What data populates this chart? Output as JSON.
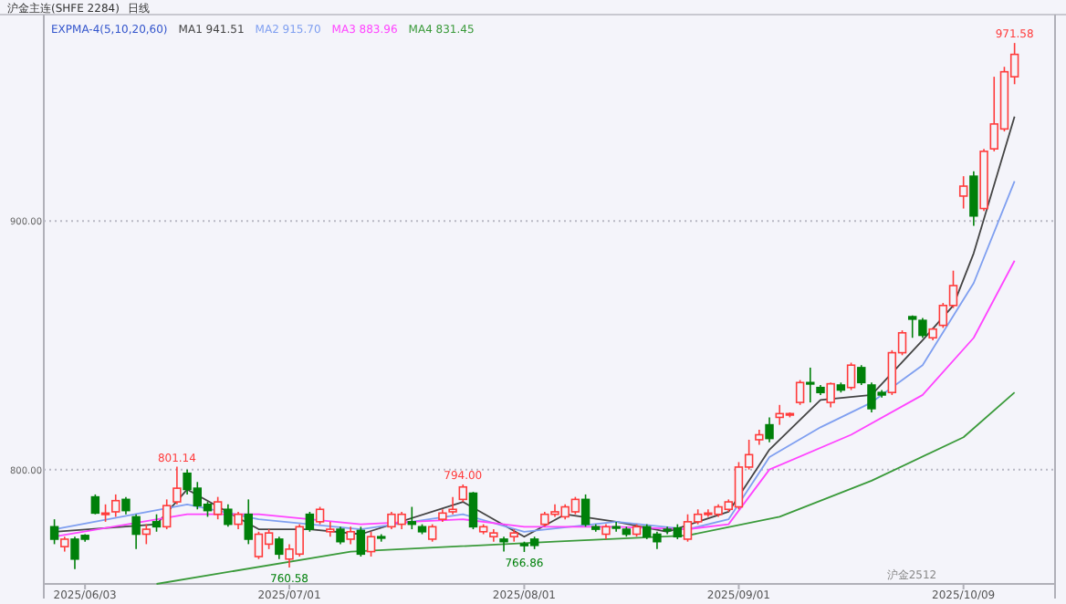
{
  "chart_data": {
    "type": "candlestick",
    "title": "沪金主连(SHFE 2284)",
    "subtitle": "日线",
    "legend_title": "EXPMA-4(5,10,20,60)",
    "categories": [
      null,
      null,
      null,
      "2025/06/03",
      null,
      null,
      null,
      null,
      null,
      null,
      null,
      null,
      null,
      null,
      null,
      null,
      null,
      null,
      null,
      null,
      null,
      null,
      null,
      "2025/07/01",
      null,
      null,
      null,
      null,
      null,
      null,
      null,
      null,
      null,
      null,
      null,
      null,
      null,
      null,
      null,
      null,
      null,
      null,
      null,
      null,
      null,
      null,
      "2025/08/01",
      null,
      null,
      null,
      null,
      null,
      null,
      null,
      null,
      null,
      null,
      null,
      null,
      null,
      null,
      null,
      null,
      null,
      null,
      null,
      null,
      "2025/09/01",
      null,
      null,
      null,
      null,
      null,
      null,
      null,
      null,
      null,
      null,
      null,
      null,
      null,
      null,
      null,
      null,
      null,
      null,
      null,
      null,
      null,
      "2025/10/09",
      null,
      null,
      null,
      null,
      null
    ],
    "ohlc": [
      [
        777,
        780,
        770,
        772
      ],
      [
        769,
        773,
        767,
        772
      ],
      [
        772,
        773,
        760,
        764
      ],
      [
        773.5,
        774,
        771,
        772
      ],
      [
        789,
        790,
        782,
        782.5
      ],
      [
        782,
        786,
        779,
        782.5
      ],
      [
        783,
        790,
        781,
        787.5
      ],
      [
        788,
        789,
        782,
        783.5
      ],
      [
        781,
        782,
        768,
        774
      ],
      [
        774,
        778,
        770,
        776
      ],
      [
        779,
        782,
        775,
        777
      ],
      [
        777,
        788,
        776,
        785.5
      ],
      [
        787,
        801.14,
        786,
        792.5
      ],
      [
        798.5,
        800,
        790,
        792
      ],
      [
        792.5,
        795,
        784,
        785.5
      ],
      [
        786,
        787,
        781,
        783.5
      ],
      [
        782,
        789,
        780,
        787
      ],
      [
        784,
        786,
        777,
        778
      ],
      [
        778,
        783,
        776,
        782
      ],
      [
        782,
        788,
        770,
        772
      ],
      [
        765,
        775,
        764,
        774
      ],
      [
        770,
        776,
        768,
        774.5
      ],
      [
        772,
        773,
        764,
        766
      ],
      [
        764,
        770,
        760.58,
        768
      ],
      [
        766,
        778,
        765,
        777
      ],
      [
        782,
        783,
        775,
        776
      ],
      [
        779,
        785,
        778,
        784
      ],
      [
        775,
        779,
        773,
        776
      ],
      [
        776,
        777,
        770,
        771
      ],
      [
        772,
        777,
        770,
        775
      ],
      [
        775.5,
        777,
        765,
        766
      ],
      [
        767,
        775,
        765,
        773
      ],
      [
        773,
        774,
        771,
        772.5
      ],
      [
        777,
        783,
        776,
        782
      ],
      [
        778,
        783,
        776,
        782
      ],
      [
        779,
        785,
        776,
        778
      ],
      [
        777,
        778,
        774,
        775
      ],
      [
        772,
        778,
        771,
        777
      ],
      [
        780,
        784,
        779,
        782.5
      ],
      [
        783,
        789,
        782,
        784
      ],
      [
        788,
        794.0,
        787,
        793
      ],
      [
        790.5,
        791,
        776,
        777
      ],
      [
        775,
        778,
        774,
        777
      ],
      [
        773,
        776,
        771,
        774.5
      ],
      [
        772,
        773,
        767,
        771
      ],
      [
        773,
        776,
        771,
        774.5
      ],
      [
        770,
        771,
        766.86,
        769.5
      ],
      [
        772,
        773,
        768,
        769.5
      ],
      [
        778,
        783,
        777,
        782
      ],
      [
        782,
        786,
        781,
        783
      ],
      [
        781,
        786,
        780,
        785
      ],
      [
        783,
        789,
        782,
        788
      ],
      [
        788,
        790,
        777,
        778
      ],
      [
        777,
        778,
        775,
        776
      ],
      [
        774,
        778,
        772,
        777
      ],
      [
        777,
        779,
        775,
        776.5
      ],
      [
        776,
        777,
        773,
        774
      ],
      [
        774,
        778,
        773,
        777
      ],
      [
        777,
        778,
        772,
        773
      ],
      [
        774,
        775,
        768,
        771
      ],
      [
        776,
        777,
        774,
        775.5
      ],
      [
        776.5,
        778,
        772,
        773
      ],
      [
        772,
        782,
        771,
        779
      ],
      [
        779,
        784,
        778,
        782
      ],
      [
        782,
        784,
        781,
        782.5
      ],
      [
        782,
        786,
        781,
        785
      ],
      [
        784,
        788,
        783,
        787
      ],
      [
        785,
        803,
        784,
        801
      ],
      [
        801,
        812,
        800,
        806
      ],
      [
        812,
        816,
        810,
        814
      ],
      [
        818,
        821,
        811,
        812.5
      ],
      [
        821,
        826,
        818,
        822.5
      ],
      [
        822,
        823,
        821,
        822.5
      ],
      [
        827,
        836,
        826,
        835
      ],
      [
        835,
        841,
        827,
        834.5
      ],
      [
        833,
        834,
        830,
        831
      ],
      [
        827,
        835,
        825,
        834.5
      ],
      [
        834,
        835,
        831,
        832
      ],
      [
        833,
        843,
        832,
        842
      ],
      [
        841,
        842,
        834,
        835
      ],
      [
        834,
        835,
        823,
        824.5
      ],
      [
        831,
        832,
        829,
        830
      ],
      [
        831,
        848,
        830,
        847
      ],
      [
        847,
        856,
        846,
        855
      ],
      [
        861.5,
        862,
        853,
        860.5
      ],
      [
        860,
        861,
        853,
        854
      ],
      [
        853,
        857,
        852,
        856.5
      ],
      [
        858,
        867,
        857,
        866
      ],
      [
        866,
        880,
        865,
        874
      ],
      [
        910,
        918,
        905,
        914
      ],
      [
        918,
        920,
        898,
        902
      ],
      [
        905,
        929,
        904,
        928
      ],
      [
        929,
        958,
        928,
        939
      ],
      [
        937,
        962,
        936,
        960
      ],
      [
        958,
        971.58,
        955,
        967
      ]
    ],
    "series": [
      {
        "name": "MA1 941.51",
        "type": "line",
        "color": "#444444",
        "values": [
          775,
          null,
          null,
          null,
          null,
          null,
          null,
          null,
          null,
          null,
          778,
          null,
          null,
          792,
          null,
          null,
          null,
          null,
          null,
          null,
          776,
          null,
          null,
          null,
          null,
          776,
          null,
          null,
          null,
          null,
          774,
          null,
          null,
          null,
          null,
          null,
          null,
          null,
          null,
          null,
          787,
          null,
          null,
          null,
          null,
          null,
          773,
          null,
          null,
          null,
          782,
          null,
          null,
          null,
          null,
          779,
          null,
          null,
          null,
          null,
          775,
          null,
          null,
          null,
          null,
          null,
          783,
          null,
          null,
          null,
          808,
          null,
          null,
          null,
          null,
          828,
          null,
          null,
          null,
          null,
          830,
          null,
          null,
          null,
          null,
          852,
          null,
          null,
          866,
          null,
          887,
          null,
          null,
          null,
          942
        ]
      },
      {
        "name": "MA2 915.70",
        "type": "line",
        "color": "#7f9ff0",
        "values": [
          776,
          null,
          null,
          null,
          null,
          null,
          null,
          null,
          null,
          null,
          null,
          null,
          null,
          786,
          null,
          null,
          null,
          null,
          null,
          null,
          780,
          null,
          null,
          null,
          null,
          null,
          null,
          null,
          null,
          null,
          776,
          null,
          null,
          null,
          null,
          null,
          null,
          null,
          null,
          null,
          782,
          null,
          null,
          null,
          null,
          null,
          775,
          null,
          null,
          null,
          null,
          null,
          null,
          null,
          null,
          779,
          null,
          null,
          null,
          null,
          null,
          null,
          776,
          null,
          null,
          null,
          780,
          null,
          null,
          null,
          805,
          null,
          null,
          null,
          null,
          817,
          null,
          null,
          null,
          null,
          827,
          null,
          null,
          null,
          null,
          842,
          null,
          null,
          null,
          null,
          875,
          null,
          null,
          null,
          916
        ]
      },
      {
        "name": "MA3 883.96",
        "type": "line",
        "color": "#ff44ff",
        "values": [
          773,
          null,
          null,
          null,
          null,
          null,
          null,
          null,
          null,
          null,
          null,
          null,
          null,
          782,
          null,
          null,
          null,
          null,
          null,
          null,
          782,
          null,
          null,
          null,
          null,
          null,
          null,
          null,
          null,
          null,
          778,
          null,
          null,
          null,
          null,
          null,
          null,
          null,
          null,
          null,
          780,
          null,
          null,
          null,
          null,
          null,
          777,
          null,
          null,
          null,
          null,
          null,
          null,
          null,
          null,
          777,
          null,
          null,
          null,
          null,
          null,
          null,
          776,
          null,
          null,
          null,
          778,
          null,
          null,
          null,
          800,
          null,
          null,
          null,
          null,
          null,
          null,
          null,
          814,
          null,
          null,
          null,
          null,
          null,
          null,
          830,
          null,
          null,
          null,
          null,
          853,
          null,
          null,
          null,
          884
        ]
      },
      {
        "name": "MA4 831.45",
        "type": "line",
        "color": "#3a9a3a",
        "values": [
          null,
          null,
          null,
          null,
          null,
          null,
          null,
          null,
          null,
          null,
          754,
          null,
          null,
          null,
          null,
          null,
          null,
          null,
          null,
          null,
          null,
          null,
          null,
          null,
          null,
          null,
          null,
          null,
          null,
          767,
          null,
          null,
          null,
          null,
          null,
          null,
          null,
          null,
          null,
          null,
          null,
          null,
          null,
          null,
          null,
          null,
          null,
          null,
          null,
          771,
          null,
          null,
          null,
          null,
          null,
          null,
          null,
          null,
          null,
          null,
          null,
          null,
          773.5,
          null,
          null,
          null,
          null,
          null,
          null,
          null,
          null,
          781,
          null,
          null,
          null,
          null,
          null,
          null,
          null,
          null,
          795.5,
          null,
          null,
          null,
          null,
          null,
          null,
          null,
          null,
          813,
          null,
          null,
          null,
          null,
          831
        ]
      }
    ],
    "ylim": [
      754,
      983
    ],
    "yticks": [
      {
        "value": 800,
        "label": "800.00"
      },
      {
        "value": 900,
        "label": "900.00"
      }
    ],
    "grid": "y",
    "legend": "top left",
    "annotations": [
      {
        "text": "801.14",
        "y": 801.14
      },
      {
        "text": "794.00",
        "y": 794.0
      },
      {
        "text": "760.58",
        "y": 760.58
      },
      {
        "text": "766.86",
        "y": 766.86
      },
      {
        "text": "971.58",
        "y": 971.58
      },
      "沪金2512"
    ]
  }
}
